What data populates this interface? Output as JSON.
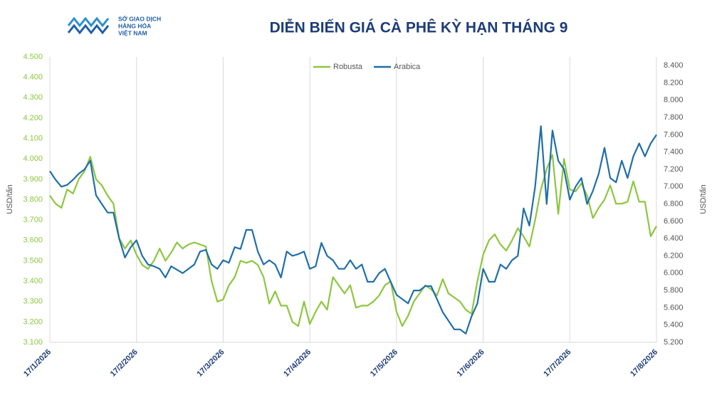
{
  "logo": {
    "lines": [
      "SỞ GIAO DỊCH",
      "HÀNG HÓA",
      "VIỆT NAM"
    ]
  },
  "chart_data": {
    "type": "line",
    "title": "DIỄN BIẾN GIÁ CÀ PHÊ KỲ HẠN THÁNG 9",
    "y_label": "USD/tấn",
    "y2_label": "USD/tấn",
    "grid": "x",
    "legend": "top",
    "categories": [
      "17/1/2026",
      null,
      null,
      null,
      null,
      null,
      null,
      null,
      null,
      null,
      null,
      null,
      null,
      null,
      null,
      "17/2/2026",
      null,
      null,
      null,
      null,
      null,
      null,
      null,
      null,
      null,
      null,
      null,
      null,
      null,
      null,
      "17/3/2026",
      null,
      null,
      null,
      null,
      null,
      null,
      null,
      null,
      null,
      null,
      null,
      null,
      null,
      null,
      "17/4/2026",
      null,
      null,
      null,
      null,
      null,
      null,
      null,
      null,
      null,
      null,
      null,
      null,
      null,
      null,
      "17/5/2026",
      null,
      null,
      null,
      null,
      null,
      null,
      null,
      null,
      null,
      null,
      null,
      null,
      null,
      null,
      "17/6/2026",
      null,
      null,
      null,
      null,
      null,
      null,
      null,
      null,
      null,
      null,
      null,
      null,
      null,
      null,
      "17/7/2026",
      null,
      null,
      null,
      null,
      null,
      null,
      null,
      null,
      null,
      null,
      null,
      null,
      null,
      null,
      "17/8/2026"
    ],
    "series": [
      {
        "name": "Robusta",
        "color": "#8dc63f",
        "axis": "y",
        "values": [
          3820,
          3780,
          3760,
          3850,
          3830,
          3900,
          3940,
          4010,
          3900,
          3870,
          3820,
          3780,
          3610,
          3560,
          3600,
          3530,
          3480,
          3460,
          3500,
          3560,
          3500,
          3540,
          3590,
          3560,
          3580,
          3590,
          3580,
          3570,
          3400,
          3300,
          3310,
          3380,
          3420,
          3500,
          3490,
          3500,
          3480,
          3420,
          3290,
          3350,
          3280,
          3280,
          3200,
          3180,
          3300,
          3190,
          3250,
          3300,
          3260,
          3420,
          3380,
          3340,
          3380,
          3270,
          3280,
          3280,
          3300,
          3330,
          3380,
          3400,
          3250,
          3180,
          3230,
          3300,
          3340,
          3380,
          3360,
          3330,
          3410,
          3340,
          3320,
          3300,
          3260,
          3240,
          3400,
          3530,
          3600,
          3630,
          3580,
          3550,
          3600,
          3660,
          3620,
          3570,
          3700,
          3850,
          3950,
          4020,
          3730,
          4000,
          3850,
          3840,
          3880,
          3820,
          3710,
          3760,
          3800,
          3870,
          3780,
          3780,
          3790,
          3890,
          3790,
          3790,
          3620,
          3670
        ]
      },
      {
        "name": "Arabica",
        "color": "#1f6fa8",
        "axis": "y2",
        "values": [
          7180,
          7080,
          7000,
          7020,
          7080,
          7150,
          7200,
          7300,
          6900,
          6800,
          6700,
          6700,
          6400,
          6180,
          6300,
          6380,
          6200,
          6100,
          6080,
          6050,
          5950,
          6080,
          6040,
          6000,
          6050,
          6100,
          6250,
          6270,
          6100,
          6050,
          6150,
          6120,
          6300,
          6280,
          6500,
          6500,
          6250,
          6100,
          6150,
          6100,
          5950,
          6250,
          6200,
          6220,
          6250,
          6050,
          6080,
          6350,
          6200,
          6150,
          6050,
          6050,
          6150,
          6050,
          6100,
          5900,
          5900,
          6000,
          6050,
          5900,
          5750,
          5700,
          5650,
          5800,
          5800,
          5850,
          5850,
          5700,
          5550,
          5450,
          5350,
          5350,
          5300,
          5500,
          5650,
          6050,
          5900,
          5900,
          6100,
          6050,
          6150,
          6200,
          6750,
          6550,
          7000,
          7700,
          6800,
          7650,
          7300,
          7200,
          6850,
          7000,
          7100,
          6800,
          6950,
          7150,
          7450,
          7100,
          7050,
          7300,
          7100,
          7350,
          7500,
          7350,
          7500,
          7600
        ]
      }
    ],
    "ylim": [
      3100,
      4500
    ],
    "yticks": [
      {
        "value": 3100,
        "label": "3.100"
      },
      {
        "value": 3200,
        "label": "3.200"
      },
      {
        "value": 3300,
        "label": "3.300"
      },
      {
        "value": 3400,
        "label": "3.400"
      },
      {
        "value": 3500,
        "label": "3.500"
      },
      {
        "value": 3600,
        "label": "3.600"
      },
      {
        "value": 3700,
        "label": "3.700"
      },
      {
        "value": 3800,
        "label": "3.800"
      },
      {
        "value": 3900,
        "label": "3.900"
      },
      {
        "value": 4000,
        "label": "4.000"
      },
      {
        "value": 4100,
        "label": "4.100"
      },
      {
        "value": 4200,
        "label": "4.200"
      },
      {
        "value": 4300,
        "label": "4.300"
      },
      {
        "value": 4400,
        "label": "4.400"
      },
      {
        "value": 4500,
        "label": "4.500"
      }
    ],
    "y2lim": [
      5200,
      8500
    ],
    "y2ticks": [
      {
        "value": 5200,
        "label": "5.200"
      },
      {
        "value": 5400,
        "label": "5.400"
      },
      {
        "value": 5600,
        "label": "5.600"
      },
      {
        "value": 5800,
        "label": "5.800"
      },
      {
        "value": 6000,
        "label": "6.000"
      },
      {
        "value": 6200,
        "label": "6.200"
      },
      {
        "value": 6400,
        "label": "6.400"
      },
      {
        "value": 6600,
        "label": "6.600"
      },
      {
        "value": 6800,
        "label": "6.800"
      },
      {
        "value": 7000,
        "label": "7.000"
      },
      {
        "value": 7200,
        "label": "7.200"
      },
      {
        "value": 7400,
        "label": "7.400"
      },
      {
        "value": 7600,
        "label": "7.600"
      },
      {
        "value": 7800,
        "label": "7.800"
      },
      {
        "value": 8000,
        "label": "8.000"
      },
      {
        "value": 8200,
        "label": "8.200"
      },
      {
        "value": 8400,
        "label": "8.400"
      }
    ]
  }
}
